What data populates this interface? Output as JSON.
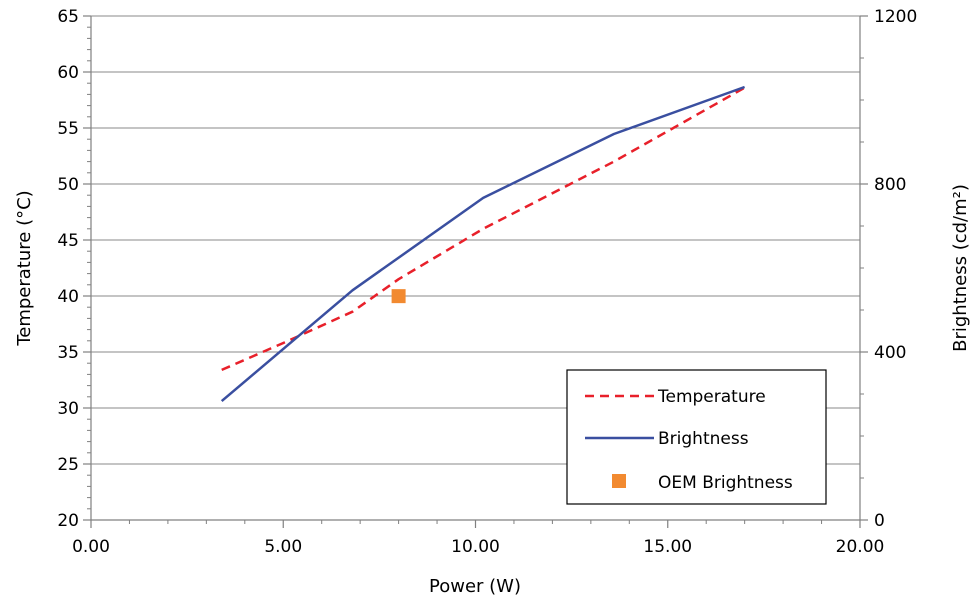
{
  "chart_data": {
    "type": "line",
    "xlabel": "Power (W)",
    "ylabel_left": "Temperature (°C)",
    "ylabel_right": "Brightness (cd/m²)",
    "xlim": [
      0,
      20
    ],
    "x_ticks": [
      0,
      5,
      10,
      15,
      20
    ],
    "x_tick_labels": [
      "0.00",
      "5.00",
      "10.00",
      "15.00",
      "20.00"
    ],
    "ylim_left": [
      20,
      65
    ],
    "y_left_ticks": [
      20,
      25,
      30,
      35,
      40,
      45,
      50,
      55,
      60,
      65
    ],
    "y_left_tick_labels": [
      "20",
      "25",
      "30",
      "35",
      "40",
      "45",
      "50",
      "55",
      "60",
      "65"
    ],
    "ylim_right": [
      0,
      1200
    ],
    "y_right_ticks": [
      0,
      400,
      800,
      1200
    ],
    "y_right_tick_labels": [
      "0",
      "400",
      "800",
      "1200"
    ],
    "grid": "horizontal",
    "legend_position": "bottom-right",
    "series": [
      {
        "name": "Temperature",
        "axis": "left",
        "style": "dashed",
        "color": "#e8202a",
        "x": [
          3.4,
          5.0,
          6.8,
          8.0,
          10.2,
          13.6,
          17.0
        ],
        "y": [
          33.4,
          35.8,
          38.6,
          41.5,
          46.0,
          52.0,
          58.6
        ]
      },
      {
        "name": "Brightness",
        "axis": "right",
        "style": "solid",
        "color": "#3a4fa0",
        "x": [
          3.4,
          6.8,
          10.2,
          13.6,
          17.0
        ],
        "y": [
          283,
          547,
          767,
          919,
          1031
        ]
      },
      {
        "name": "OEM Brightness",
        "axis": "right",
        "style": "marker",
        "color": "#f28a30",
        "x": [
          8.0
        ],
        "y": [
          533
        ]
      }
    ]
  }
}
